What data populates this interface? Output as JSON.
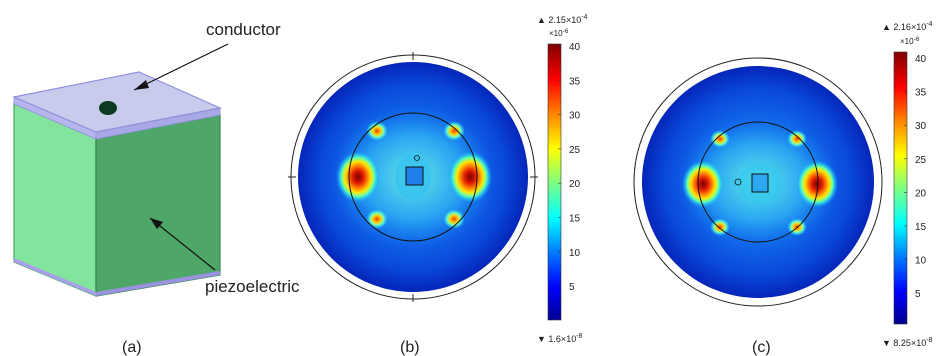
{
  "panel_a": {
    "label": "(a)",
    "conductor_label": "conductor",
    "piezo_label": "piezoelectric",
    "colors": {
      "top": "#c9cbec",
      "top_edge": "#8f8fdc",
      "front": "#83e49d",
      "side": "#4fa669",
      "hole": "#0d3a22"
    }
  },
  "panel_b": {
    "label": "(b)",
    "colorbar": {
      "max_text": "2.15×10",
      "max_exp": "-4",
      "scale_text": "×10",
      "scale_exp": "-6",
      "min_text": "1.6×10",
      "min_exp": "-8",
      "ticks": [
        "40",
        "35",
        "30",
        "25",
        "20",
        "15",
        "10",
        "5"
      ]
    }
  },
  "panel_c": {
    "label": "(c)",
    "colorbar": {
      "max_text": "2.16×10",
      "max_exp": "-4",
      "scale_text": "×10",
      "scale_exp": "-6",
      "min_text": "8.25×10",
      "min_exp": "-8",
      "ticks": [
        "40",
        "35",
        "30",
        "25",
        "20",
        "15",
        "10",
        "5"
      ]
    }
  },
  "colormap": [
    "#00008f",
    "#0000ff",
    "#0080ff",
    "#00ffff",
    "#80ff80",
    "#ffff00",
    "#ff8000",
    "#ff0000",
    "#800000"
  ]
}
